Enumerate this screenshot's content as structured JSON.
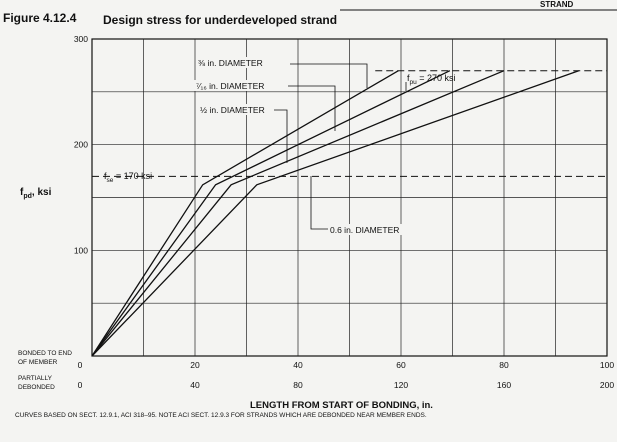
{
  "header": {
    "figure_no": "Figure 4.12.4",
    "title": "Design stress for underdeveloped strand",
    "corner": "STRAND"
  },
  "chart_data": {
    "type": "line",
    "ylabel_main": "f",
    "ylabel_sub": "pd",
    "ylabel_unit": ", ksi",
    "yticks": [
      "300",
      "200",
      "100"
    ],
    "ylim": [
      0,
      300
    ],
    "xlim": [
      0,
      100
    ],
    "row1_label": [
      "BONDED TO END",
      "OF MEMBER"
    ],
    "row2_label": [
      "PARTIALLY",
      "DEBONDED"
    ],
    "x_row1": {
      "values": [
        0,
        20,
        40,
        60,
        80,
        100
      ],
      "labels": [
        "0",
        "20",
        "40",
        "60",
        "80",
        "100"
      ]
    },
    "x_row2": {
      "values": [
        0,
        20,
        40,
        60,
        80,
        100
      ],
      "labels": [
        "0",
        "40",
        "80",
        "120",
        "160",
        "200"
      ]
    },
    "xlabel": "LENGTH FROM START OF BONDING, in.",
    "fse": {
      "value": 170,
      "label": "f",
      "sub": "se",
      "rest": " = 170 ksi"
    },
    "fpu": {
      "value": 270,
      "label": "f",
      "sub": "pu",
      "rest": " = 270 ksi"
    },
    "series": [
      {
        "name": "⅜ in. DIAMETER",
        "points": [
          [
            0,
            0
          ],
          [
            21.5,
            162
          ],
          [
            59.5,
            270
          ]
        ]
      },
      {
        "name": "⁷⁄₁₆ in. DIAMETER",
        "points": [
          [
            0,
            0
          ],
          [
            24,
            162
          ],
          [
            69.5,
            270
          ]
        ]
      },
      {
        "name": "½ in. DIAMETER",
        "points": [
          [
            0,
            0
          ],
          [
            27,
            162
          ],
          [
            80,
            270
          ]
        ]
      },
      {
        "name": "0.6 in. DIAMETER",
        "points": [
          [
            0,
            0
          ],
          [
            32,
            162
          ],
          [
            94.5,
            270
          ]
        ]
      }
    ],
    "note": "CURVES BASED ON SECT. 12.9.1, ACI 318–95. NOTE ACI SECT. 12.9.3 FOR STRANDS WHICH ARE DEBONDED NEAR MEMBER ENDS."
  }
}
